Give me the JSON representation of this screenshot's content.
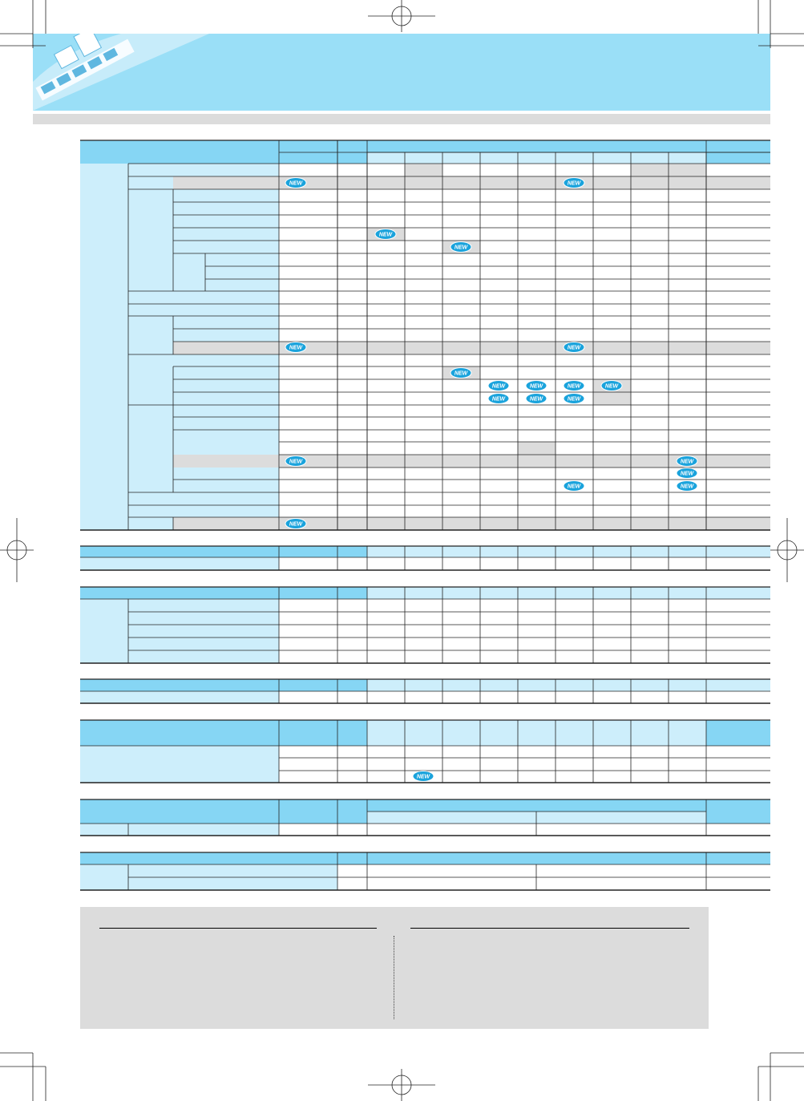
{
  "colors": {
    "header_band": "#9adff7",
    "header_strip": "#dcdcdc",
    "table_header_fill": "#86d6f4",
    "table_side_fill": "#cdeefb",
    "row_highlight": "#dcdcdc",
    "note_panel": "#dcdcdc",
    "badge_fill": "#1aa3dc"
  },
  "badge": {
    "label": "NEW",
    "icon": "new-badge-icon"
  },
  "header": {
    "icon": "components-illustration-icon"
  }
}
